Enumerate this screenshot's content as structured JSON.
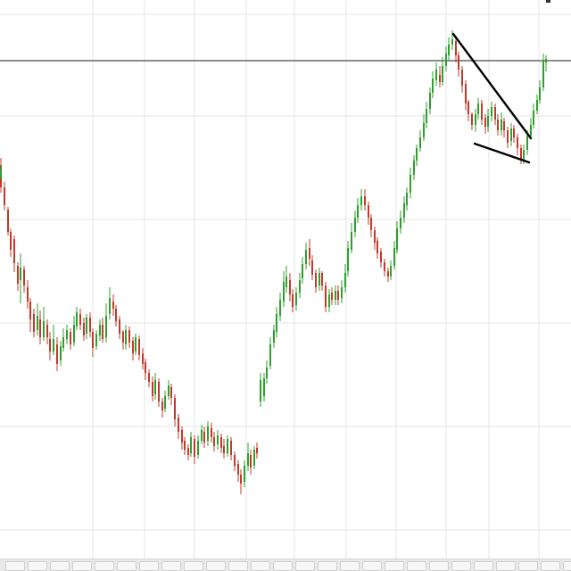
{
  "chart_data": {
    "type": "candlestick",
    "title": "",
    "xlabel": "",
    "ylabel": "",
    "grid": true,
    "legend": "none",
    "ylim": [
      0,
      640
    ],
    "up_color": "#2ca02c",
    "down_color": "#c0392b",
    "reference_level": 572,
    "candles": [
      [
        0,
        0,
        455,
        430,
        463,
        424
      ],
      [
        1,
        0,
        440,
        450,
        455,
        440
      ],
      [
        2,
        4,
        430,
        410,
        436,
        404
      ],
      [
        3,
        8,
        405,
        380,
        408,
        376
      ],
      [
        4,
        11,
        380,
        360,
        384,
        352
      ],
      [
        5,
        15,
        372,
        345,
        376,
        335
      ],
      [
        6,
        19,
        342,
        322,
        346,
        314
      ],
      [
        7,
        22,
        326,
        340,
        356,
        300
      ],
      [
        8,
        26,
        338,
        320,
        342,
        312
      ],
      [
        9,
        30,
        318,
        302,
        326,
        294
      ],
      [
        10,
        33,
        302,
        282,
        306,
        268
      ],
      [
        11,
        37,
        288,
        268,
        294,
        262
      ],
      [
        12,
        41,
        270,
        286,
        300,
        264
      ],
      [
        13,
        44,
        282,
        262,
        292,
        254
      ],
      [
        14,
        48,
        262,
        280,
        296,
        258
      ],
      [
        15,
        52,
        276,
        262,
        282,
        254
      ],
      [
        16,
        55,
        260,
        246,
        268,
        236
      ],
      [
        17,
        59,
        246,
        260,
        276,
        242
      ],
      [
        18,
        63,
        254,
        232,
        262,
        224
      ],
      [
        19,
        67,
        236,
        252,
        258,
        230
      ],
      [
        20,
        70,
        250,
        262,
        272,
        246
      ],
      [
        21,
        74,
        260,
        270,
        276,
        254
      ],
      [
        22,
        78,
        268,
        254,
        272,
        248
      ],
      [
        23,
        82,
        256,
        276,
        286,
        252
      ],
      [
        24,
        85,
        274,
        290,
        296,
        270
      ],
      [
        25,
        89,
        288,
        276,
        294,
        270
      ],
      [
        26,
        93,
        278,
        264,
        284,
        258
      ],
      [
        27,
        96,
        266,
        284,
        288,
        260
      ],
      [
        28,
        100,
        284,
        268,
        290,
        262
      ],
      [
        29,
        103,
        268,
        250,
        272,
        240
      ],
      [
        30,
        107,
        252,
        266,
        270,
        248
      ],
      [
        31,
        111,
        264,
        276,
        282,
        258
      ],
      [
        32,
        114,
        276,
        260,
        284,
        256
      ],
      [
        33,
        118,
        262,
        286,
        300,
        256
      ],
      [
        34,
        122,
        288,
        306,
        318,
        282
      ],
      [
        35,
        126,
        302,
        294,
        310,
        286
      ],
      [
        36,
        129,
        294,
        280,
        298,
        274
      ],
      [
        37,
        133,
        282,
        266,
        286,
        260
      ],
      [
        38,
        137,
        268,
        256,
        270,
        248
      ],
      [
        39,
        140,
        254,
        270,
        276,
        248
      ],
      [
        40,
        144,
        270,
        256,
        274,
        250
      ],
      [
        41,
        148,
        258,
        244,
        262,
        236
      ],
      [
        42,
        151,
        246,
        262,
        266,
        242
      ],
      [
        43,
        155,
        260,
        242,
        264,
        236
      ],
      [
        44,
        159,
        244,
        232,
        250,
        226
      ],
      [
        45,
        162,
        234,
        222,
        238,
        214
      ],
      [
        46,
        166,
        222,
        212,
        226,
        206
      ],
      [
        47,
        170,
        212,
        196,
        218,
        190
      ],
      [
        48,
        173,
        198,
        214,
        222,
        192
      ],
      [
        49,
        177,
        212,
        190,
        216,
        184
      ],
      [
        50,
        181,
        190,
        180,
        194,
        172
      ],
      [
        51,
        184,
        182,
        196,
        202,
        178
      ],
      [
        52,
        188,
        196,
        208,
        214,
        192
      ],
      [
        53,
        191,
        206,
        194,
        210,
        186
      ],
      [
        54,
        195,
        194,
        170,
        198,
        162
      ],
      [
        55,
        199,
        172,
        156,
        176,
        148
      ],
      [
        56,
        203,
        158,
        144,
        162,
        136
      ],
      [
        57,
        206,
        146,
        136,
        150,
        130
      ],
      [
        58,
        210,
        138,
        130,
        142,
        124
      ],
      [
        59,
        213,
        132,
        150,
        156,
        128
      ],
      [
        60,
        217,
        148,
        128,
        152,
        120
      ],
      [
        61,
        221,
        130,
        146,
        152,
        126
      ],
      [
        62,
        225,
        146,
        158,
        164,
        142
      ],
      [
        63,
        228,
        156,
        144,
        162,
        138
      ],
      [
        64,
        232,
        146,
        162,
        168,
        140
      ],
      [
        65,
        236,
        160,
        150,
        166,
        144
      ],
      [
        66,
        239,
        150,
        140,
        156,
        134
      ],
      [
        67,
        243,
        142,
        152,
        158,
        136
      ],
      [
        68,
        247,
        150,
        138,
        154,
        132
      ],
      [
        69,
        250,
        140,
        132,
        148,
        126
      ],
      [
        70,
        254,
        132,
        148,
        152,
        128
      ],
      [
        71,
        258,
        146,
        130,
        150,
        124
      ],
      [
        72,
        262,
        130,
        118,
        134,
        112
      ],
      [
        73,
        266,
        120,
        108,
        124,
        100
      ],
      [
        74,
        269,
        108,
        98,
        114,
        86
      ],
      [
        75,
        273,
        100,
        118,
        124,
        94
      ],
      [
        76,
        277,
        118,
        132,
        144,
        112
      ],
      [
        77,
        280,
        130,
        116,
        136,
        108
      ],
      [
        78,
        284,
        118,
        136,
        140,
        114
      ],
      [
        79,
        287,
        138,
        132,
        144,
        126
      ],
      [
        80,
        291,
        190,
        214,
        222,
        184
      ],
      [
        81,
        295,
        196,
        216,
        222,
        190
      ],
      [
        82,
        298,
        216,
        228,
        236,
        210
      ],
      [
        83,
        302,
        230,
        254,
        262,
        226
      ],
      [
        84,
        306,
        256,
        270,
        276,
        250
      ],
      [
        85,
        309,
        268,
        288,
        296,
        262
      ],
      [
        86,
        313,
        286,
        304,
        312,
        280
      ],
      [
        87,
        317,
        302,
        324,
        336,
        296
      ],
      [
        88,
        320,
        318,
        330,
        342,
        312
      ],
      [
        89,
        324,
        326,
        310,
        334,
        302
      ],
      [
        90,
        327,
        310,
        296,
        316,
        290
      ],
      [
        91,
        331,
        298,
        312,
        318,
        292
      ],
      [
        92,
        335,
        312,
        326,
        334,
        306
      ],
      [
        93,
        338,
        328,
        344,
        352,
        322
      ],
      [
        94,
        342,
        344,
        360,
        368,
        338
      ],
      [
        95,
        346,
        362,
        350,
        372,
        342
      ],
      [
        96,
        349,
        348,
        332,
        354,
        326
      ],
      [
        97,
        353,
        334,
        318,
        338,
        312
      ],
      [
        98,
        357,
        320,
        334,
        340,
        314
      ],
      [
        99,
        360,
        334,
        320,
        336,
        314
      ],
      [
        100,
        364,
        320,
        296,
        324,
        290
      ],
      [
        101,
        368,
        296,
        310,
        316,
        290
      ],
      [
        102,
        371,
        312,
        304,
        318,
        298
      ],
      [
        103,
        375,
        304,
        314,
        320,
        298
      ],
      [
        104,
        378,
        314,
        304,
        320,
        298
      ],
      [
        105,
        382,
        306,
        318,
        326,
        300
      ],
      [
        106,
        386,
        318,
        334,
        344,
        312
      ],
      [
        107,
        389,
        336,
        362,
        370,
        330
      ],
      [
        108,
        393,
        360,
        380,
        390,
        356
      ],
      [
        109,
        397,
        380,
        396,
        404,
        374
      ],
      [
        110,
        400,
        396,
        410,
        418,
        390
      ],
      [
        111,
        404,
        410,
        420,
        428,
        404
      ],
      [
        112,
        408,
        420,
        410,
        428,
        404
      ],
      [
        113,
        412,
        410,
        396,
        414,
        388
      ],
      [
        114,
        415,
        396,
        382,
        400,
        374
      ],
      [
        115,
        419,
        382,
        368,
        386,
        360
      ],
      [
        116,
        422,
        370,
        356,
        374,
        350
      ],
      [
        117,
        426,
        358,
        346,
        362,
        340
      ],
      [
        118,
        430,
        346,
        336,
        350,
        330
      ],
      [
        119,
        434,
        336,
        330,
        340,
        324
      ],
      [
        120,
        437,
        330,
        342,
        348,
        326
      ],
      [
        121,
        441,
        342,
        362,
        370,
        338
      ],
      [
        122,
        444,
        360,
        384,
        392,
        356
      ],
      [
        123,
        448,
        384,
        396,
        404,
        378
      ],
      [
        124,
        452,
        396,
        412,
        420,
        390
      ],
      [
        125,
        455,
        410,
        424,
        430,
        404
      ],
      [
        126,
        459,
        424,
        444,
        452,
        418
      ],
      [
        127,
        463,
        444,
        460,
        466,
        438
      ],
      [
        128,
        466,
        460,
        474,
        478,
        454
      ],
      [
        129,
        470,
        474,
        486,
        494,
        470
      ],
      [
        130,
        474,
        486,
        502,
        512,
        482
      ],
      [
        131,
        477,
        502,
        518,
        526,
        496
      ],
      [
        132,
        481,
        518,
        536,
        542,
        512
      ],
      [
        133,
        484,
        536,
        552,
        560,
        530
      ],
      [
        134,
        488,
        550,
        562,
        570,
        544
      ],
      [
        135,
        492,
        556,
        548,
        566,
        542
      ],
      [
        136,
        495,
        548,
        566,
        576,
        544
      ],
      [
        137,
        499,
        566,
        580,
        588,
        560
      ],
      [
        138,
        502,
        578,
        590,
        598,
        572
      ],
      [
        139,
        506,
        590,
        596,
        606,
        584
      ],
      [
        140,
        510,
        594,
        578,
        600,
        570
      ],
      [
        141,
        513,
        578,
        562,
        582,
        554
      ],
      [
        142,
        517,
        562,
        544,
        566,
        536
      ],
      [
        143,
        521,
        546,
        524,
        550,
        516
      ],
      [
        144,
        524,
        526,
        512,
        528,
        504
      ],
      [
        145,
        528,
        512,
        500,
        514,
        494
      ],
      [
        146,
        532,
        500,
        512,
        518,
        492
      ],
      [
        147,
        535,
        512,
        524,
        530,
        506
      ],
      [
        148,
        539,
        524,
        506,
        528,
        500
      ],
      [
        149,
        543,
        508,
        498,
        512,
        490
      ],
      [
        150,
        546,
        498,
        510,
        518,
        492
      ],
      [
        151,
        550,
        510,
        520,
        526,
        504
      ],
      [
        152,
        554,
        520,
        506,
        524,
        500
      ],
      [
        153,
        557,
        506,
        494,
        512,
        488
      ],
      [
        154,
        561,
        494,
        506,
        514,
        488
      ],
      [
        155,
        564,
        504,
        494,
        508,
        486
      ],
      [
        156,
        568,
        494,
        480,
        498,
        474
      ],
      [
        157,
        572,
        482,
        496,
        502,
        476
      ],
      [
        158,
        575,
        496,
        486,
        500,
        480
      ],
      [
        159,
        579,
        486,
        474,
        490,
        466
      ],
      [
        160,
        583,
        474,
        462,
        478,
        456
      ],
      [
        161,
        586,
        460,
        472,
        478,
        456
      ],
      [
        162,
        590,
        472,
        488,
        494,
        466
      ],
      [
        163,
        594,
        488,
        500,
        508,
        484
      ],
      [
        164,
        597,
        500,
        516,
        524,
        496
      ],
      [
        165,
        601,
        516,
        528,
        534,
        512
      ],
      [
        166,
        604,
        528,
        542,
        550,
        524
      ],
      [
        167,
        608,
        542,
        572,
        580,
        538
      ],
      [
        168,
        611,
        570,
        574,
        578,
        560
      ]
    ],
    "trendlines": [
      {
        "x1": 508,
        "y1": 602,
        "x2": 595,
        "y2": 485
      },
      {
        "x1": 532,
        "y1": 479,
        "x2": 593,
        "y2": 458
      }
    ]
  },
  "colors": {
    "grid": "#e4e4e4",
    "reference_line": "#8c8c8c",
    "trendline": "#000000"
  }
}
